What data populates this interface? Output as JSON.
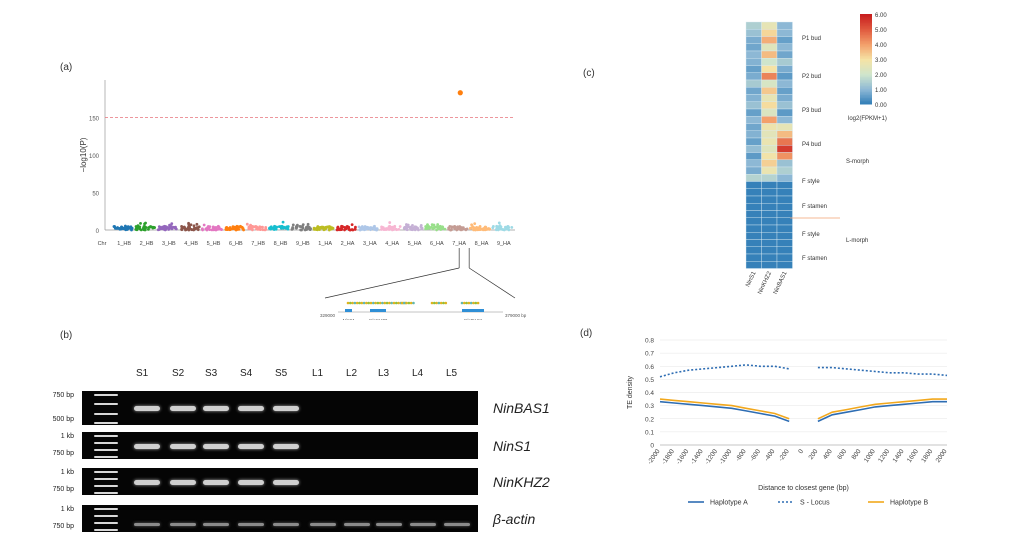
{
  "panel_labels": {
    "a": "(a)",
    "b": "(b)",
    "c": "(c)",
    "d": "(d)"
  },
  "manhattan": {
    "y_axis_label": "−log10(P)",
    "y_ticks": [
      "0",
      "50",
      "100",
      "150"
    ],
    "chromosomes": [
      "Chr",
      "1_HB",
      "2_HB",
      "3_HB",
      "4_HB",
      "5_HB",
      "6_HB",
      "7_HB",
      "8_HB",
      "9_HB",
      "1_HA",
      "2_HA",
      "3_HA",
      "4_HA",
      "5_HA",
      "6_HA",
      "7_HA",
      "8_HA",
      "9_HA"
    ],
    "colors": [
      "#1f77b4",
      "#2ca02c",
      "#9467bd",
      "#8c564b",
      "#e377c2",
      "#ff7f0e",
      "#ff9896",
      "#17becf",
      "#7f7f7f",
      "#bcbd22",
      "#d62728",
      "#aec7e8",
      "#f7b6d2",
      "#c5b0d5",
      "#98df8a",
      "#c49c94",
      "#ffbb78",
      "#9edae5"
    ],
    "threshold_value": 150,
    "peak_value": 183,
    "peak_chromosome": "7_HA",
    "peak_color": "#ff7f0e"
  },
  "zoom": {
    "left_coord": "329000",
    "right_coord": "379000 bp",
    "genes": [
      "NinS1",
      "NinKHZ2",
      "NinBAS1"
    ]
  },
  "gel": {
    "lanes": [
      "S1",
      "S2",
      "S3",
      "S4",
      "S5",
      "L1",
      "L2",
      "L3",
      "L4",
      "L5"
    ],
    "rows": [
      {
        "gene": "NinBAS1",
        "ladder": [
          "750 bp",
          "500 bp"
        ],
        "bands": [
          1,
          1,
          1,
          1,
          1,
          0,
          0,
          0,
          0,
          0
        ]
      },
      {
        "gene": "NinS1",
        "ladder": [
          "1 kb",
          "750 bp"
        ],
        "bands": [
          1,
          1,
          1,
          1,
          1,
          0,
          0,
          0,
          0,
          0
        ]
      },
      {
        "gene": "NinKHZ2",
        "ladder": [
          "1 kb",
          "750 bp"
        ],
        "bands": [
          1,
          1,
          1,
          1,
          1,
          0,
          0,
          0,
          0,
          0
        ]
      },
      {
        "gene": "β-actin",
        "ladder": [
          "1 kb",
          "750 bp"
        ],
        "bands": [
          1,
          1,
          1,
          1,
          1,
          1,
          1,
          1,
          1,
          1
        ]
      }
    ]
  },
  "heatmap": {
    "columns": [
      "NinS1",
      "NinKHZ2",
      "NinBAS1"
    ],
    "row_groups": [
      "P1 bud",
      "P2 bud",
      "P3 bud",
      "P4 bud",
      "F style",
      "F stamen",
      "F style",
      "F stamen"
    ],
    "morph_labels": [
      "S-morph",
      "L-morph"
    ],
    "legend_title": "log2(FPKM+1)",
    "legend_ticks": [
      "6.00",
      "5.00",
      "4.00",
      "3.00",
      "2.00",
      "1.00",
      "0.00"
    ],
    "values": [
      [
        1.5,
        2.6,
        1.0
      ],
      [
        1.2,
        3.2,
        1.0
      ],
      [
        0.8,
        3.8,
        0.6
      ],
      [
        0.7,
        2.4,
        1.0
      ],
      [
        1.0,
        3.6,
        0.7
      ],
      [
        0.9,
        2.0,
        1.4
      ],
      [
        0.6,
        3.0,
        0.8
      ],
      [
        0.8,
        4.4,
        0.5
      ],
      [
        1.4,
        2.2,
        1.0
      ],
      [
        0.7,
        3.4,
        0.6
      ],
      [
        0.9,
        2.6,
        0.8
      ],
      [
        1.2,
        3.1,
        1.2
      ],
      [
        0.6,
        2.3,
        0.5
      ],
      [
        1.0,
        4.0,
        1.0
      ],
      [
        0.7,
        2.8,
        2.6
      ],
      [
        0.9,
        2.5,
        3.6
      ],
      [
        0.6,
        2.7,
        4.6
      ],
      [
        1.1,
        2.4,
        5.5
      ],
      [
        0.5,
        2.9,
        4.2
      ],
      [
        1.0,
        3.3,
        1.2
      ],
      [
        0.8,
        2.7,
        1.5
      ],
      [
        1.6,
        1.6,
        1.0
      ],
      [
        0.1,
        0.1,
        0.1
      ],
      [
        0.1,
        0.1,
        0.1
      ],
      [
        0.1,
        0.1,
        0.1
      ],
      [
        0.1,
        0.1,
        0.1
      ],
      [
        0.1,
        0.1,
        0.1
      ],
      [
        0.1,
        0.1,
        0.1
      ],
      [
        0.1,
        0.1,
        0.1
      ],
      [
        0.1,
        0.1,
        0.1
      ],
      [
        0.1,
        0.1,
        0.1
      ],
      [
        0.1,
        0.1,
        0.1
      ],
      [
        0.1,
        0.1,
        0.1
      ],
      [
        0.1,
        0.1,
        0.1
      ]
    ]
  },
  "chart_data": {
    "type": "line",
    "title": "",
    "xlabel": "Distance to closest gene (bp)",
    "ylabel": "TE density",
    "ylim": [
      0,
      0.8
    ],
    "y_ticks": [
      "0",
      "0.1",
      "0.2",
      "0.3",
      "0.4",
      "0.5",
      "0.6",
      "0.7",
      "0.8"
    ],
    "x": [
      -2000,
      -1800,
      -1600,
      -1400,
      -1200,
      -1000,
      -800,
      -600,
      -400,
      -200,
      0,
      200,
      400,
      600,
      800,
      1000,
      1200,
      1400,
      1600,
      1800,
      2000
    ],
    "x_tick_labels": [
      "-2000",
      "-1800",
      "-1600",
      "-1400",
      "-1200",
      "-1000",
      "-800",
      "-600",
      "-400",
      "-200",
      "0",
      "200",
      "400",
      "600",
      "800",
      "1000",
      "1200",
      "1400",
      "1600",
      "1800",
      "2000"
    ],
    "series": [
      {
        "name": "Haplotype A",
        "color": "#2e6db3",
        "dash": false,
        "values": [
          0.33,
          0.32,
          0.31,
          0.3,
          0.29,
          0.28,
          0.26,
          0.24,
          0.22,
          0.18,
          null,
          0.18,
          0.23,
          0.25,
          0.27,
          0.29,
          0.3,
          0.31,
          0.32,
          0.33,
          0.33
        ]
      },
      {
        "name": "S - Locus",
        "color": "#2e6db3",
        "dash": true,
        "values": [
          0.52,
          0.55,
          0.57,
          0.58,
          0.59,
          0.6,
          0.61,
          0.6,
          0.6,
          0.58,
          null,
          0.59,
          0.59,
          0.58,
          0.57,
          0.56,
          0.55,
          0.55,
          0.54,
          0.54,
          0.53
        ]
      },
      {
        "name": "Haplotype B",
        "color": "#f2a81d",
        "dash": false,
        "values": [
          0.35,
          0.34,
          0.33,
          0.32,
          0.31,
          0.3,
          0.28,
          0.26,
          0.24,
          0.2,
          null,
          0.2,
          0.25,
          0.27,
          0.29,
          0.31,
          0.32,
          0.33,
          0.34,
          0.35,
          0.35
        ]
      }
    ],
    "legend": [
      "Haplotype A",
      "S - Locus",
      "Haplotype B"
    ]
  }
}
